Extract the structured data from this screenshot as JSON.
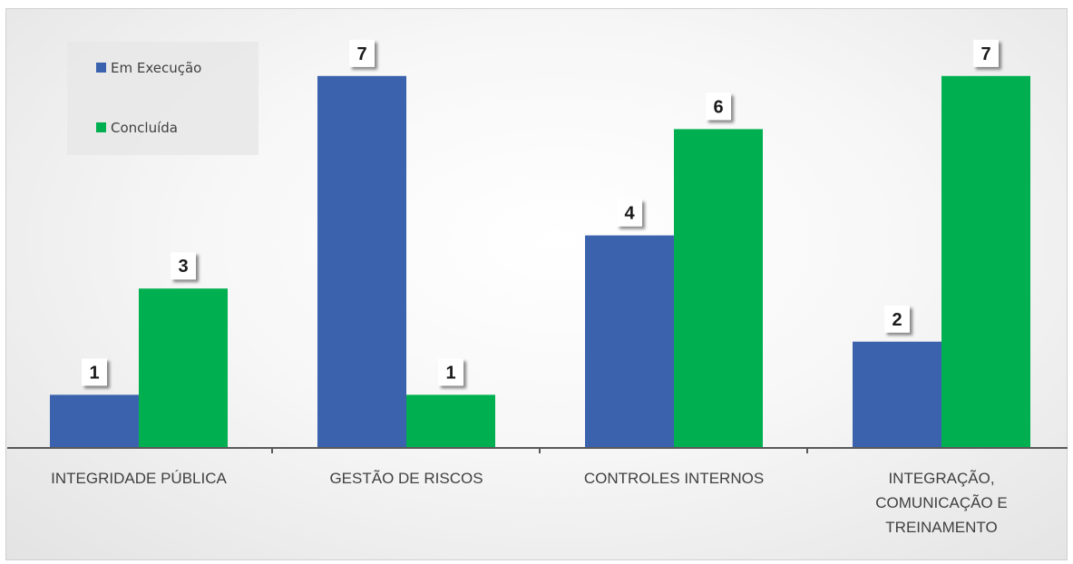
{
  "chart_data": {
    "type": "bar",
    "categories": [
      [
        "INTEGRIDADE PÚBLICA"
      ],
      [
        "GESTÃO DE RISCOS"
      ],
      [
        "CONTROLES INTERNOS"
      ],
      [
        "INTEGRAÇÃO,",
        "COMUNICAÇÃO E",
        "TREINAMENTO"
      ]
    ],
    "series": [
      {
        "name": "Em Execução",
        "values": [
          1,
          7,
          4,
          2
        ],
        "color": "#3a62ad"
      },
      {
        "name": "Concluída",
        "values": [
          3,
          1,
          6,
          7
        ],
        "color": "#00b050"
      }
    ],
    "ylim": [
      0,
      7
    ],
    "grid": false,
    "legend_position": "top-left",
    "data_labels": true
  }
}
